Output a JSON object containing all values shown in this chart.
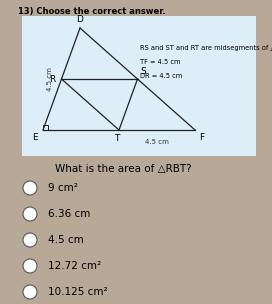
{
  "bg_color": "#b8a898",
  "card_color": "#ddeef8",
  "question_num": "13) Choose the correct answer.",
  "legend_lines": [
    "RS and ST and RT are midsegments of △DEF,",
    "TF = 4.5 cm",
    "DR = 4.5 cm"
  ],
  "triangle_question": "What is the area of △RBT?",
  "options": [
    "9 cm²",
    "6.36 cm",
    "4.5 cm",
    "12.72 cm²",
    "10.125 cm²"
  ],
  "vertices": {
    "D": [
      0.215,
      0.945
    ],
    "E": [
      0.155,
      0.675
    ],
    "F": [
      0.56,
      0.675
    ]
  },
  "side_label": "4.5 cm",
  "bottom_label": "4.5 cm"
}
